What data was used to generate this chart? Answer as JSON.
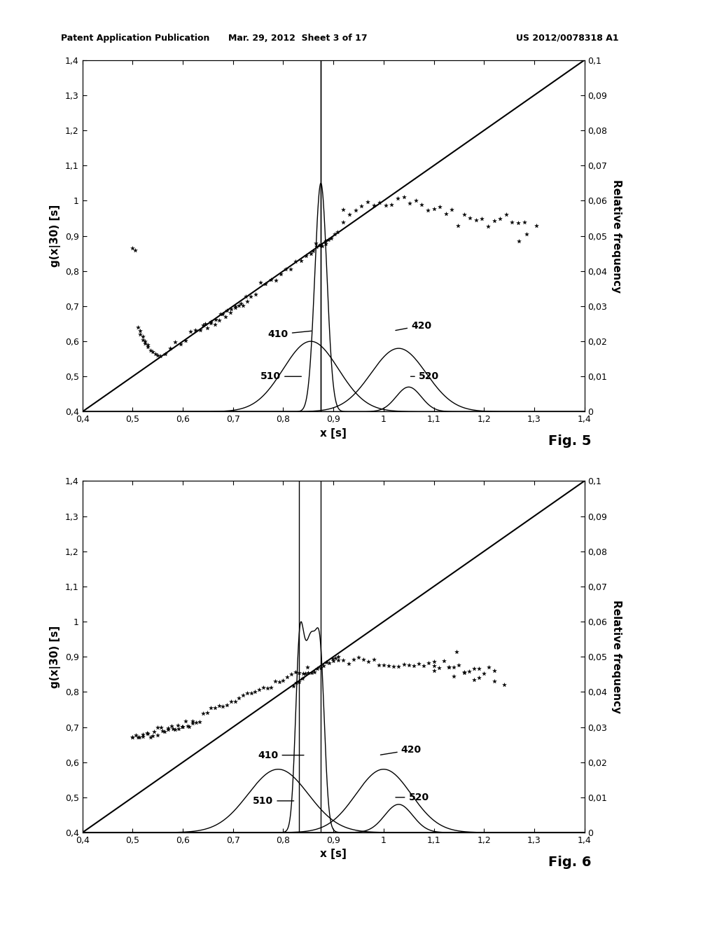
{
  "header_left": "Patent Application Publication",
  "header_mid": "Mar. 29, 2012  Sheet 3 of 17",
  "header_right": "US 2012/0078318 A1",
  "fig5_label": "Fig. 5",
  "fig6_label": "Fig. 6",
  "xlim": [
    0.4,
    1.4
  ],
  "ylim_left": [
    0.4,
    1.4
  ],
  "ylim_right": [
    0.0,
    0.1
  ],
  "xlabel": "x [s]",
  "ylabel_left": "g(x|30) [s]",
  "ylabel_right": "Relative frequency",
  "xtick_labels": [
    "0,4",
    "0,5",
    "0,6",
    "0,7",
    "0,8",
    "0,9",
    "1",
    "1,1",
    "1,2",
    "1,3",
    "1,4"
  ],
  "ytick_labels_left": [
    "0,4",
    "0,5",
    "0,6",
    "0,7",
    "0,8",
    "0,9",
    "1",
    "1,1",
    "1,2",
    "1,3",
    "1,4"
  ],
  "ytick_labels_right": [
    "0",
    "0,01",
    "0,02",
    "0,03",
    "0,04",
    "0,05",
    "0,06",
    "0,07",
    "0,08",
    "0,09",
    "0,1"
  ],
  "background_color": "#ffffff"
}
